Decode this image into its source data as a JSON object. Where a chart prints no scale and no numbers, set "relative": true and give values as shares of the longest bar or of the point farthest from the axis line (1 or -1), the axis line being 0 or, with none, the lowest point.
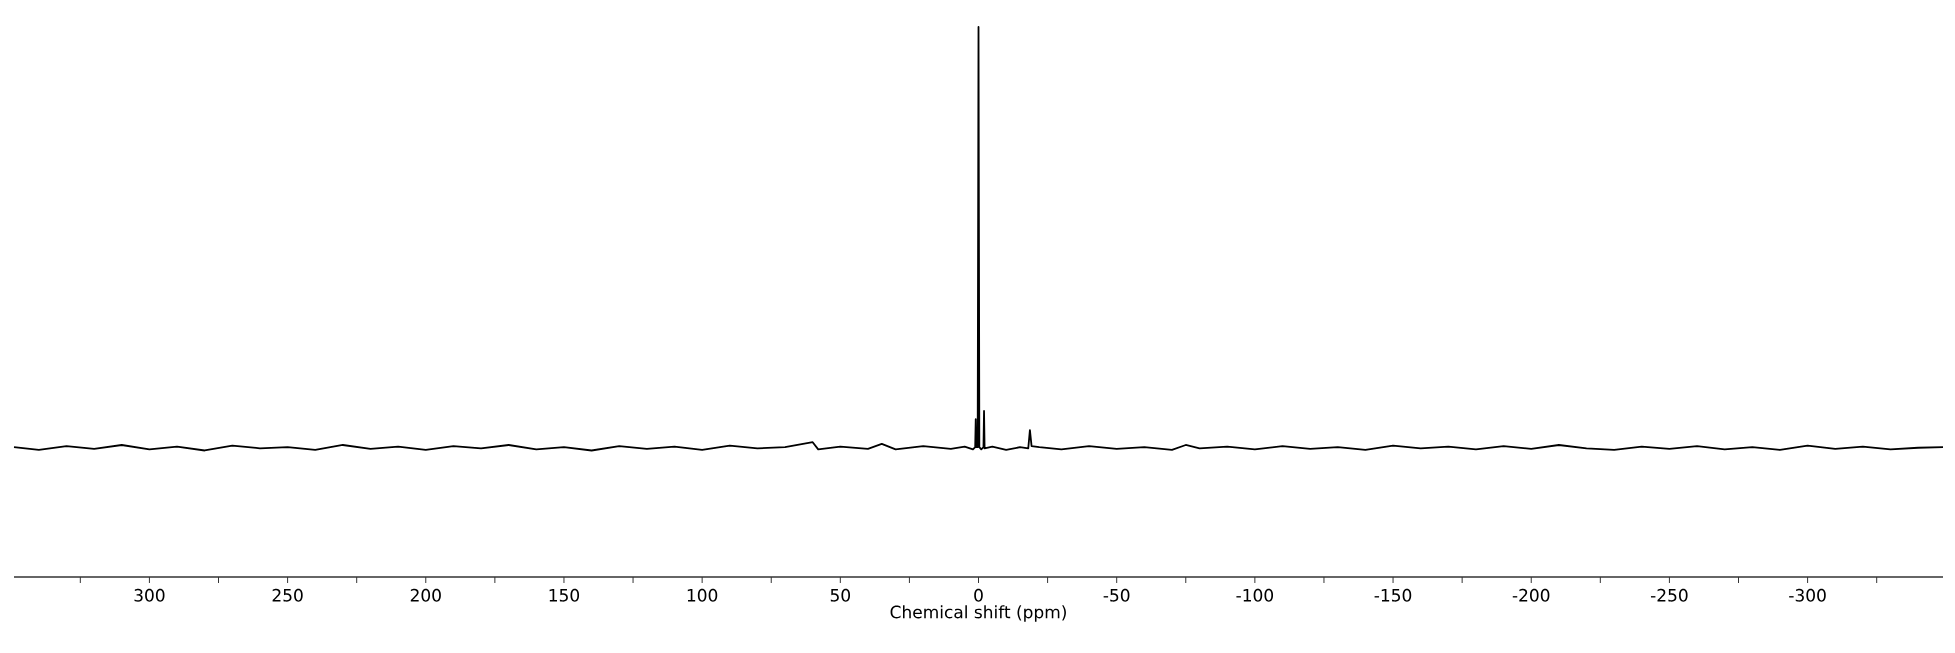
{
  "chart_data": {
    "type": "line",
    "relative": true,
    "xlabel": "Chemical shift (ppm)",
    "color": "#000000",
    "xlim": [
      349,
      -349
    ],
    "xticks": [
      {
        "value": 325,
        "label": null
      },
      300,
      {
        "value": 275,
        "label": null
      },
      250,
      {
        "value": 225,
        "label": null
      },
      200,
      {
        "value": 175,
        "label": null
      },
      150,
      {
        "value": 125,
        "label": null
      },
      100,
      {
        "value": 75,
        "label": null
      },
      50,
      {
        "value": 25,
        "label": null
      },
      0,
      {
        "value": -25,
        "label": null
      },
      -50,
      {
        "value": -75,
        "label": null
      },
      -100,
      {
        "value": -125,
        "label": null
      },
      -150,
      {
        "value": -175,
        "label": null
      },
      -200,
      {
        "value": -225,
        "label": null
      },
      -250,
      {
        "value": -275,
        "label": null
      },
      -300,
      {
        "value": -325,
        "label": null
      }
    ],
    "x": [
      349,
      340,
      330,
      320,
      310,
      300,
      290,
      280,
      270,
      260,
      250,
      240,
      230,
      220,
      210,
      200,
      190,
      180,
      170,
      160,
      150,
      140,
      130,
      120,
      110,
      100,
      90,
      80,
      70,
      60,
      58,
      50,
      40,
      35,
      30,
      20,
      10,
      5,
      2,
      1.2,
      1,
      0.8,
      0.3,
      0,
      -0.3,
      -1,
      -1.8,
      -2,
      -2.2,
      -5,
      -10,
      -15,
      -18,
      -18.6,
      -19.2,
      -22,
      -30,
      -40,
      -50,
      -60,
      -70,
      -75,
      -80,
      -90,
      -100,
      -110,
      -120,
      -130,
      -140,
      -150,
      -160,
      -170,
      -180,
      -190,
      -200,
      -210,
      -220,
      -230,
      -240,
      -250,
      -260,
      -270,
      -280,
      -290,
      -300,
      -310,
      -320,
      -330,
      -340,
      -349
    ],
    "values": [
      0.236,
      0.231,
      0.238,
      0.233,
      0.24,
      0.232,
      0.237,
      0.23,
      0.239,
      0.234,
      0.236,
      0.231,
      0.24,
      0.233,
      0.237,
      0.231,
      0.238,
      0.234,
      0.24,
      0.232,
      0.236,
      0.23,
      0.238,
      0.233,
      0.237,
      0.231,
      0.239,
      0.234,
      0.236,
      0.245,
      0.232,
      0.237,
      0.233,
      0.242,
      0.232,
      0.238,
      0.233,
      0.237,
      0.232,
      0.236,
      0.287,
      0.236,
      0.236,
      1.0,
      0.236,
      0.232,
      0.236,
      0.302,
      0.234,
      0.237,
      0.231,
      0.236,
      0.234,
      0.267,
      0.238,
      0.236,
      0.232,
      0.238,
      0.233,
      0.236,
      0.231,
      0.24,
      0.234,
      0.237,
      0.232,
      0.238,
      0.233,
      0.236,
      0.231,
      0.239,
      0.234,
      0.237,
      0.232,
      0.238,
      0.233,
      0.24,
      0.234,
      0.231,
      0.237,
      0.233,
      0.238,
      0.232,
      0.236,
      0.231,
      0.239,
      0.233,
      0.237,
      0.232,
      0.235,
      0.236
    ]
  }
}
